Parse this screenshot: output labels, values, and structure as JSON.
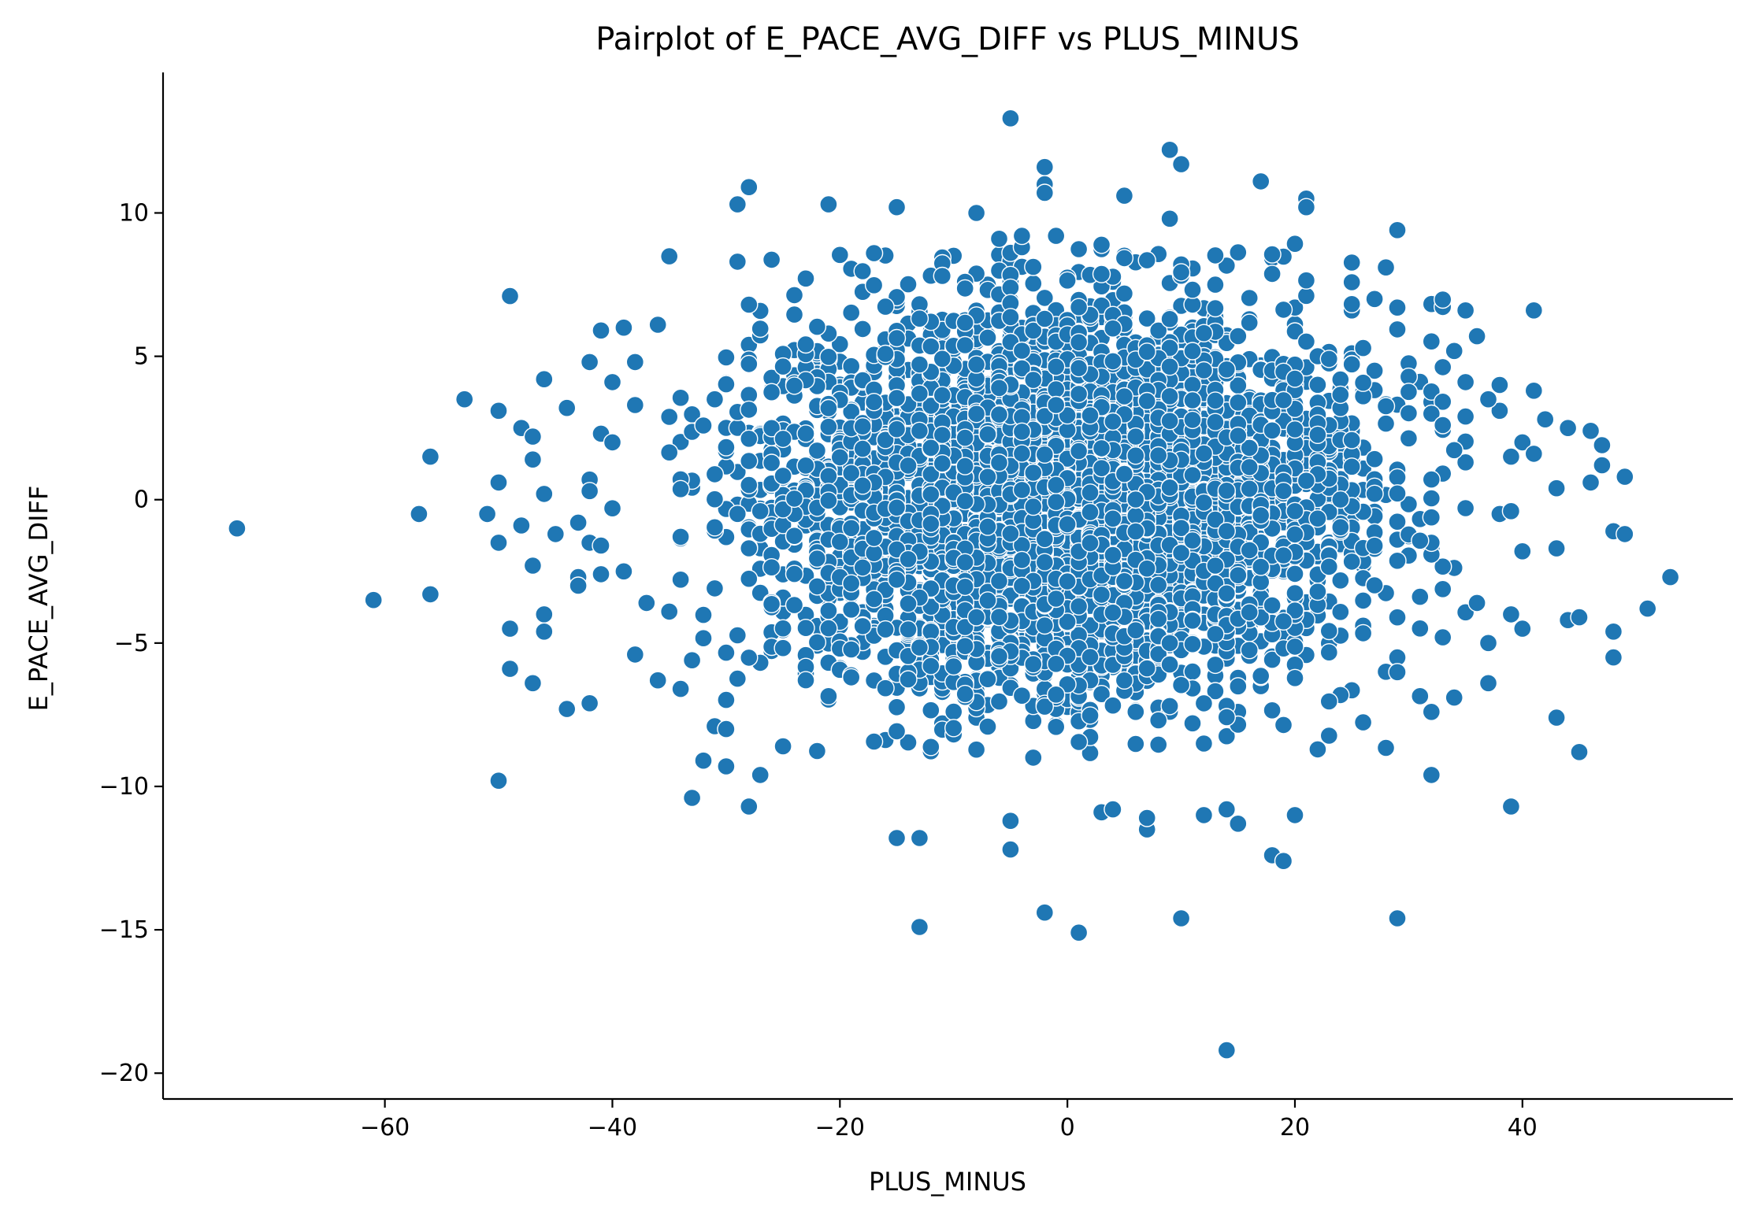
{
  "chart_data": {
    "type": "scatter",
    "title": "Pairplot of E_PACE_AVG_DIFF vs PLUS_MINUS",
    "xlabel": "PLUS_MINUS",
    "ylabel": "E_PACE_AVG_DIFF",
    "xlim": [
      -79.5,
      58.5
    ],
    "ylim": [
      -20.9,
      14.9
    ],
    "xticks": [
      -60,
      -40,
      -20,
      0,
      20,
      40
    ],
    "xtick_labels": [
      "−60",
      "−40",
      "−20",
      "0",
      "20",
      "40"
    ],
    "yticks": [
      -20,
      -15,
      -10,
      -5,
      0,
      5,
      10
    ],
    "ytick_labels": [
      "−20",
      "−15",
      "−10",
      "−5",
      "0",
      "5",
      "10"
    ],
    "grid": false,
    "legend": "none",
    "marker_color": "#1f77b4",
    "marker_edge_color": "#ffffff",
    "dense_region": {
      "x_range": [
        -35,
        35
      ],
      "y_range": [
        -9,
        9
      ],
      "note": "thousands of overlapping points roughly normally distributed around (0, 0)"
    },
    "points": [
      [
        -73,
        -1.0
      ],
      [
        -61,
        -3.5
      ],
      [
        -57,
        -0.5
      ],
      [
        -56,
        1.5
      ],
      [
        -56,
        -3.3
      ],
      [
        -53,
        3.5
      ],
      [
        -51,
        -0.5
      ],
      [
        -50,
        3.1
      ],
      [
        -50,
        0.6
      ],
      [
        -50,
        -1.5
      ],
      [
        -50,
        -9.8
      ],
      [
        -49,
        7.1
      ],
      [
        -49,
        -4.5
      ],
      [
        -49,
        -5.9
      ],
      [
        -48,
        2.5
      ],
      [
        -48,
        -0.9
      ],
      [
        -47,
        2.2
      ],
      [
        -47,
        1.4
      ],
      [
        -47,
        -2.3
      ],
      [
        -47,
        -6.4
      ],
      [
        -46,
        4.2
      ],
      [
        -46,
        0.2
      ],
      [
        -46,
        -4.0
      ],
      [
        -46,
        -4.6
      ],
      [
        -45,
        -1.2
      ],
      [
        -44,
        3.2
      ],
      [
        -44,
        -7.3
      ],
      [
        -43,
        -0.8
      ],
      [
        -43,
        -2.7
      ],
      [
        -43,
        -3.0
      ],
      [
        -42,
        4.8
      ],
      [
        -42,
        0.7
      ],
      [
        -42,
        0.3
      ],
      [
        -42,
        -1.5
      ],
      [
        -42,
        -7.1
      ],
      [
        -41,
        5.9
      ],
      [
        -41,
        2.3
      ],
      [
        -41,
        -1.6
      ],
      [
        -41,
        -2.6
      ],
      [
        -40,
        4.1
      ],
      [
        -40,
        2.0
      ],
      [
        -40,
        -0.3
      ],
      [
        -39,
        6.0
      ],
      [
        -39,
        -2.5
      ],
      [
        -38,
        4.8
      ],
      [
        -38,
        3.3
      ],
      [
        -38,
        -5.4
      ],
      [
        -37,
        -3.6
      ],
      [
        -36,
        6.1
      ],
      [
        -36,
        -6.3
      ],
      [
        -34,
        -6.6
      ],
      [
        -33,
        -10.4
      ],
      [
        -33,
        -5.6
      ],
      [
        -32,
        -9.1
      ],
      [
        -31,
        -7.9
      ],
      [
        -30,
        -9.3
      ],
      [
        -30,
        -8.0
      ],
      [
        -29,
        10.3
      ],
      [
        -29,
        8.3
      ],
      [
        -28,
        10.9
      ],
      [
        -28,
        6.8
      ],
      [
        -28,
        -10.7
      ],
      [
        -27,
        -9.6
      ],
      [
        -25,
        -8.6
      ],
      [
        -21,
        10.3
      ],
      [
        -15,
        10.2
      ],
      [
        -13,
        -11.8
      ],
      [
        -15,
        -11.8
      ],
      [
        -13,
        -14.9
      ],
      [
        -8,
        10.0
      ],
      [
        -6,
        9.1
      ],
      [
        -4,
        9.2
      ],
      [
        -5,
        13.3
      ],
      [
        -5,
        -11.2
      ],
      [
        -5,
        -12.2
      ],
      [
        -2,
        11.6
      ],
      [
        -2,
        11.0
      ],
      [
        -2,
        10.7
      ],
      [
        -1,
        9.2
      ],
      [
        -2,
        -14.4
      ],
      [
        1,
        -15.1
      ],
      [
        3,
        -10.9
      ],
      [
        4,
        -10.8
      ],
      [
        5,
        10.6
      ],
      [
        7,
        -11.5
      ],
      [
        7,
        -11.1
      ],
      [
        9,
        12.2
      ],
      [
        10,
        11.7
      ],
      [
        9,
        9.8
      ],
      [
        10,
        -14.6
      ],
      [
        12,
        -11.0
      ],
      [
        14,
        -10.8
      ],
      [
        14,
        -19.2
      ],
      [
        15,
        -11.3
      ],
      [
        17,
        11.1
      ],
      [
        18,
        -12.4
      ],
      [
        19,
        -12.6
      ],
      [
        20,
        -11.0
      ],
      [
        21,
        10.5
      ],
      [
        21,
        10.2
      ],
      [
        27,
        7.0
      ],
      [
        28,
        8.1
      ],
      [
        29,
        9.4
      ],
      [
        29,
        -14.6
      ],
      [
        29,
        6.7
      ],
      [
        32,
        -9.6
      ],
      [
        32,
        -7.4
      ],
      [
        34,
        -6.9
      ],
      [
        35,
        6.6
      ],
      [
        36,
        5.7
      ],
      [
        35,
        4.1
      ],
      [
        37,
        -6.4
      ],
      [
        39,
        -10.7
      ],
      [
        40,
        2.0
      ],
      [
        40,
        -4.5
      ],
      [
        40,
        -1.8
      ],
      [
        41,
        6.6
      ],
      [
        41,
        3.8
      ],
      [
        41,
        1.6
      ],
      [
        43,
        -1.7
      ],
      [
        43,
        -7.6
      ],
      [
        44,
        2.5
      ],
      [
        44,
        -4.2
      ],
      [
        45,
        -4.1
      ],
      [
        45,
        -8.8
      ],
      [
        46,
        2.4
      ],
      [
        46,
        0.6
      ],
      [
        47,
        1.9
      ],
      [
        47,
        1.2
      ],
      [
        48,
        -1.1
      ],
      [
        48,
        -4.6
      ],
      [
        48,
        -5.5
      ],
      [
        49,
        0.8
      ],
      [
        49,
        -1.2
      ],
      [
        51,
        -3.8
      ],
      [
        53,
        -2.7
      ],
      [
        42,
        2.8
      ],
      [
        43,
        0.4
      ],
      [
        38,
        4.0
      ],
      [
        38,
        3.1
      ],
      [
        37,
        3.5
      ],
      [
        39,
        1.5
      ],
      [
        38,
        -0.5
      ],
      [
        39,
        -0.4
      ],
      [
        37,
        -5.0
      ],
      [
        39,
        -4.0
      ],
      [
        36,
        -3.6
      ],
      [
        33,
        -4.8
      ],
      [
        35,
        2.9
      ],
      [
        33,
        2.6
      ]
    ]
  }
}
